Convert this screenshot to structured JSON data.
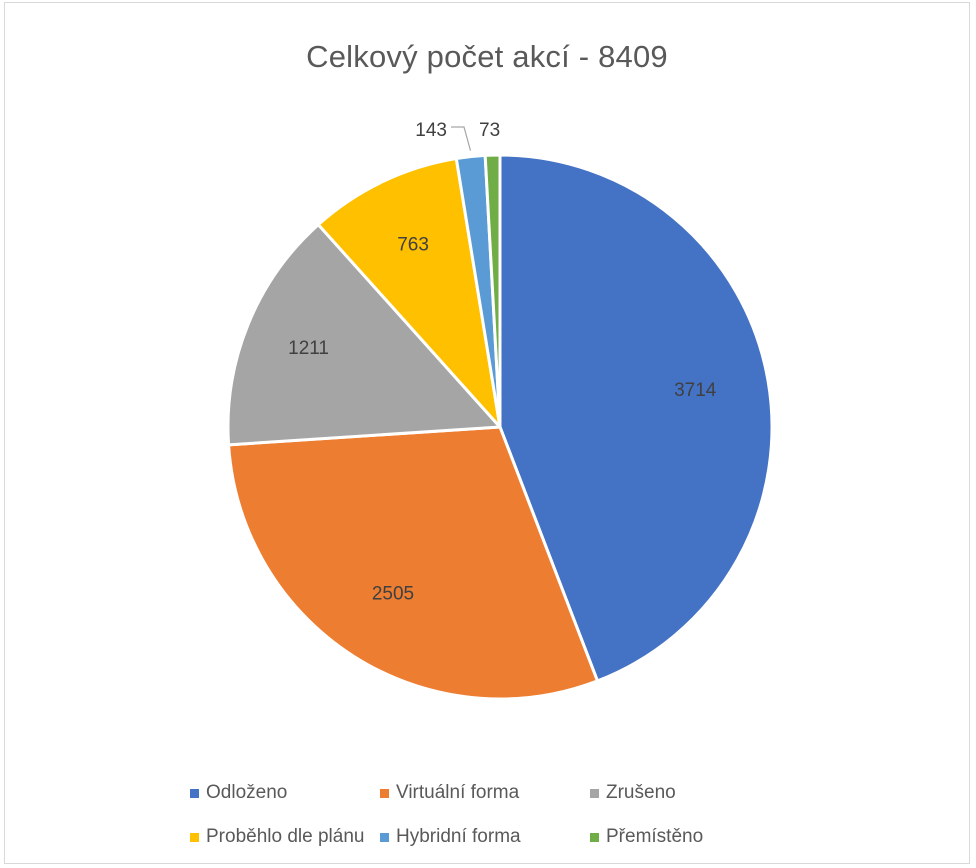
{
  "chart_data": {
    "type": "pie",
    "title": "Celkový počet akcí - 8409",
    "categories": [
      "Odloženo",
      "Virtuální forma",
      "Zrušeno",
      "Proběhlo dle plánu",
      "Hybridní forma",
      "Přemístěno"
    ],
    "values": [
      3714,
      2505,
      1211,
      763,
      143,
      73
    ],
    "labels": [
      "3714",
      "2505",
      "1211",
      "763",
      "143",
      "73"
    ],
    "colors": [
      "#4472C4",
      "#ED7D31",
      "#A5A5A5",
      "#FFC000",
      "#5B9BD5",
      "#70AD47"
    ],
    "legend_position": "bottom"
  }
}
